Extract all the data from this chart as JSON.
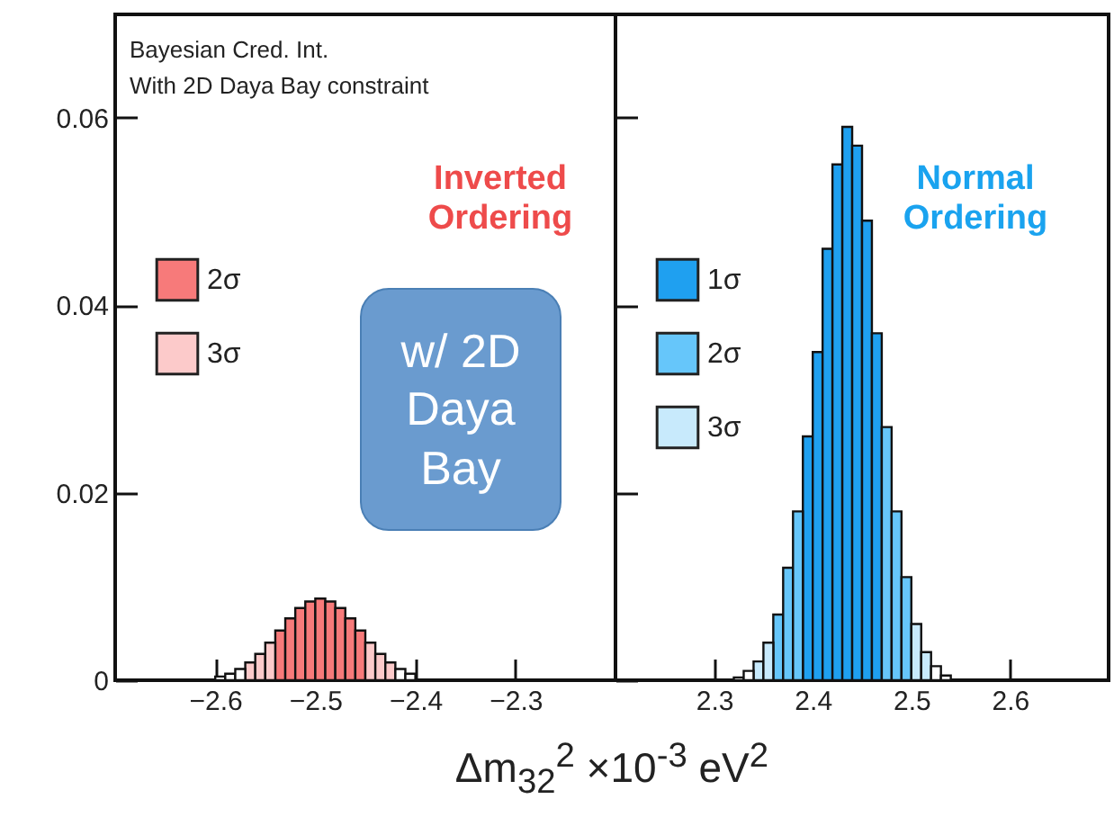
{
  "chart_data": [
    {
      "type": "histogram",
      "xlabel": "Δm$_{32}$$^{2}$ ×10$^{-3}$ eV$^{2}$",
      "annotations": [
        "Bayesian Cred. Int.",
        "With 2D Daya Bay constraint",
        "Inverted Ordering",
        "w/ 2D Daya Bay"
      ],
      "bins": [
        -2.6,
        -2.59,
        -2.58,
        -2.57,
        -2.56,
        -2.55,
        -2.54,
        -2.53,
        -2.52,
        -2.51,
        -2.5,
        -2.49,
        -2.48,
        -2.47,
        -2.46,
        -2.45,
        -2.44,
        -2.43,
        -2.42,
        -2.41,
        -2.4
      ],
      "series": [
        {
          "name": "2σ",
          "color": "#f77a7a",
          "values": [
            null,
            null,
            null,
            null,
            null,
            null,
            0.0053,
            0.0066,
            0.0077,
            0.0084,
            0.0087,
            0.0084,
            0.0077,
            0.0066,
            0.0053,
            null,
            null,
            null,
            null,
            null
          ]
        },
        {
          "name": "3σ",
          "color": "#fccaca",
          "values": [
            null,
            null,
            null,
            0.0019,
            0.0028,
            0.004,
            null,
            null,
            null,
            null,
            null,
            null,
            null,
            null,
            null,
            0.004,
            0.0028,
            0.0019,
            null,
            null
          ]
        },
        {
          "color": "#ffffff",
          "values": [
            0.0004,
            0.0007,
            0.0012,
            null,
            null,
            null,
            null,
            null,
            null,
            null,
            null,
            null,
            null,
            null,
            null,
            null,
            null,
            null,
            0.0012,
            0.0007
          ]
        }
      ],
      "xlim": [
        -2.7,
        -2.2
      ],
      "xticks": [
        -2.6,
        -2.5,
        -2.4,
        -2.3
      ],
      "ylim": [
        0,
        0.071
      ],
      "yticks": [
        0,
        0.02,
        0.04,
        0.06
      ],
      "grid": false,
      "legend": "left"
    },
    {
      "type": "histogram",
      "annotations": [
        "Normal Ordering"
      ],
      "bins": [
        2.32,
        2.33,
        2.34,
        2.35,
        2.36,
        2.37,
        2.38,
        2.39,
        2.4,
        2.41,
        2.42,
        2.43,
        2.44,
        2.45,
        2.46,
        2.47,
        2.48,
        2.49,
        2.5,
        2.51,
        2.52,
        2.53,
        2.54
      ],
      "series": [
        {
          "name": "1σ",
          "color": "#1fa0f0",
          "values": [
            null,
            null,
            null,
            null,
            null,
            null,
            null,
            0.026,
            0.035,
            0.046,
            0.055,
            0.059,
            0.057,
            0.049,
            0.037,
            null,
            null,
            null,
            null,
            null,
            null,
            null
          ]
        },
        {
          "name": "2σ",
          "color": "#66c6fa",
          "values": [
            null,
            null,
            null,
            null,
            0.007,
            0.012,
            0.018,
            null,
            null,
            null,
            null,
            null,
            null,
            null,
            null,
            0.027,
            0.018,
            0.011,
            null,
            null,
            null,
            null
          ]
        },
        {
          "name": "3σ",
          "color": "#c8eafc",
          "values": [
            null,
            null,
            0.002,
            0.004,
            null,
            null,
            null,
            null,
            null,
            null,
            null,
            null,
            null,
            null,
            null,
            null,
            null,
            null,
            0.006,
            0.003,
            null,
            null
          ]
        },
        {
          "color": "#ffffff",
          "values": [
            0.0003,
            0.001,
            null,
            null,
            null,
            null,
            null,
            null,
            null,
            null,
            null,
            null,
            null,
            null,
            null,
            null,
            null,
            null,
            null,
            null,
            0.0015,
            0.0005
          ]
        }
      ],
      "xlim": [
        2.2,
        2.7
      ],
      "xticks": [
        2.3,
        2.4,
        2.5,
        2.6
      ],
      "ylim": [
        0,
        0.071
      ],
      "yticks": [
        0,
        0.02,
        0.04,
        0.06
      ],
      "grid": false,
      "legend": "left",
      "tick_labels": "x"
    }
  ]
}
